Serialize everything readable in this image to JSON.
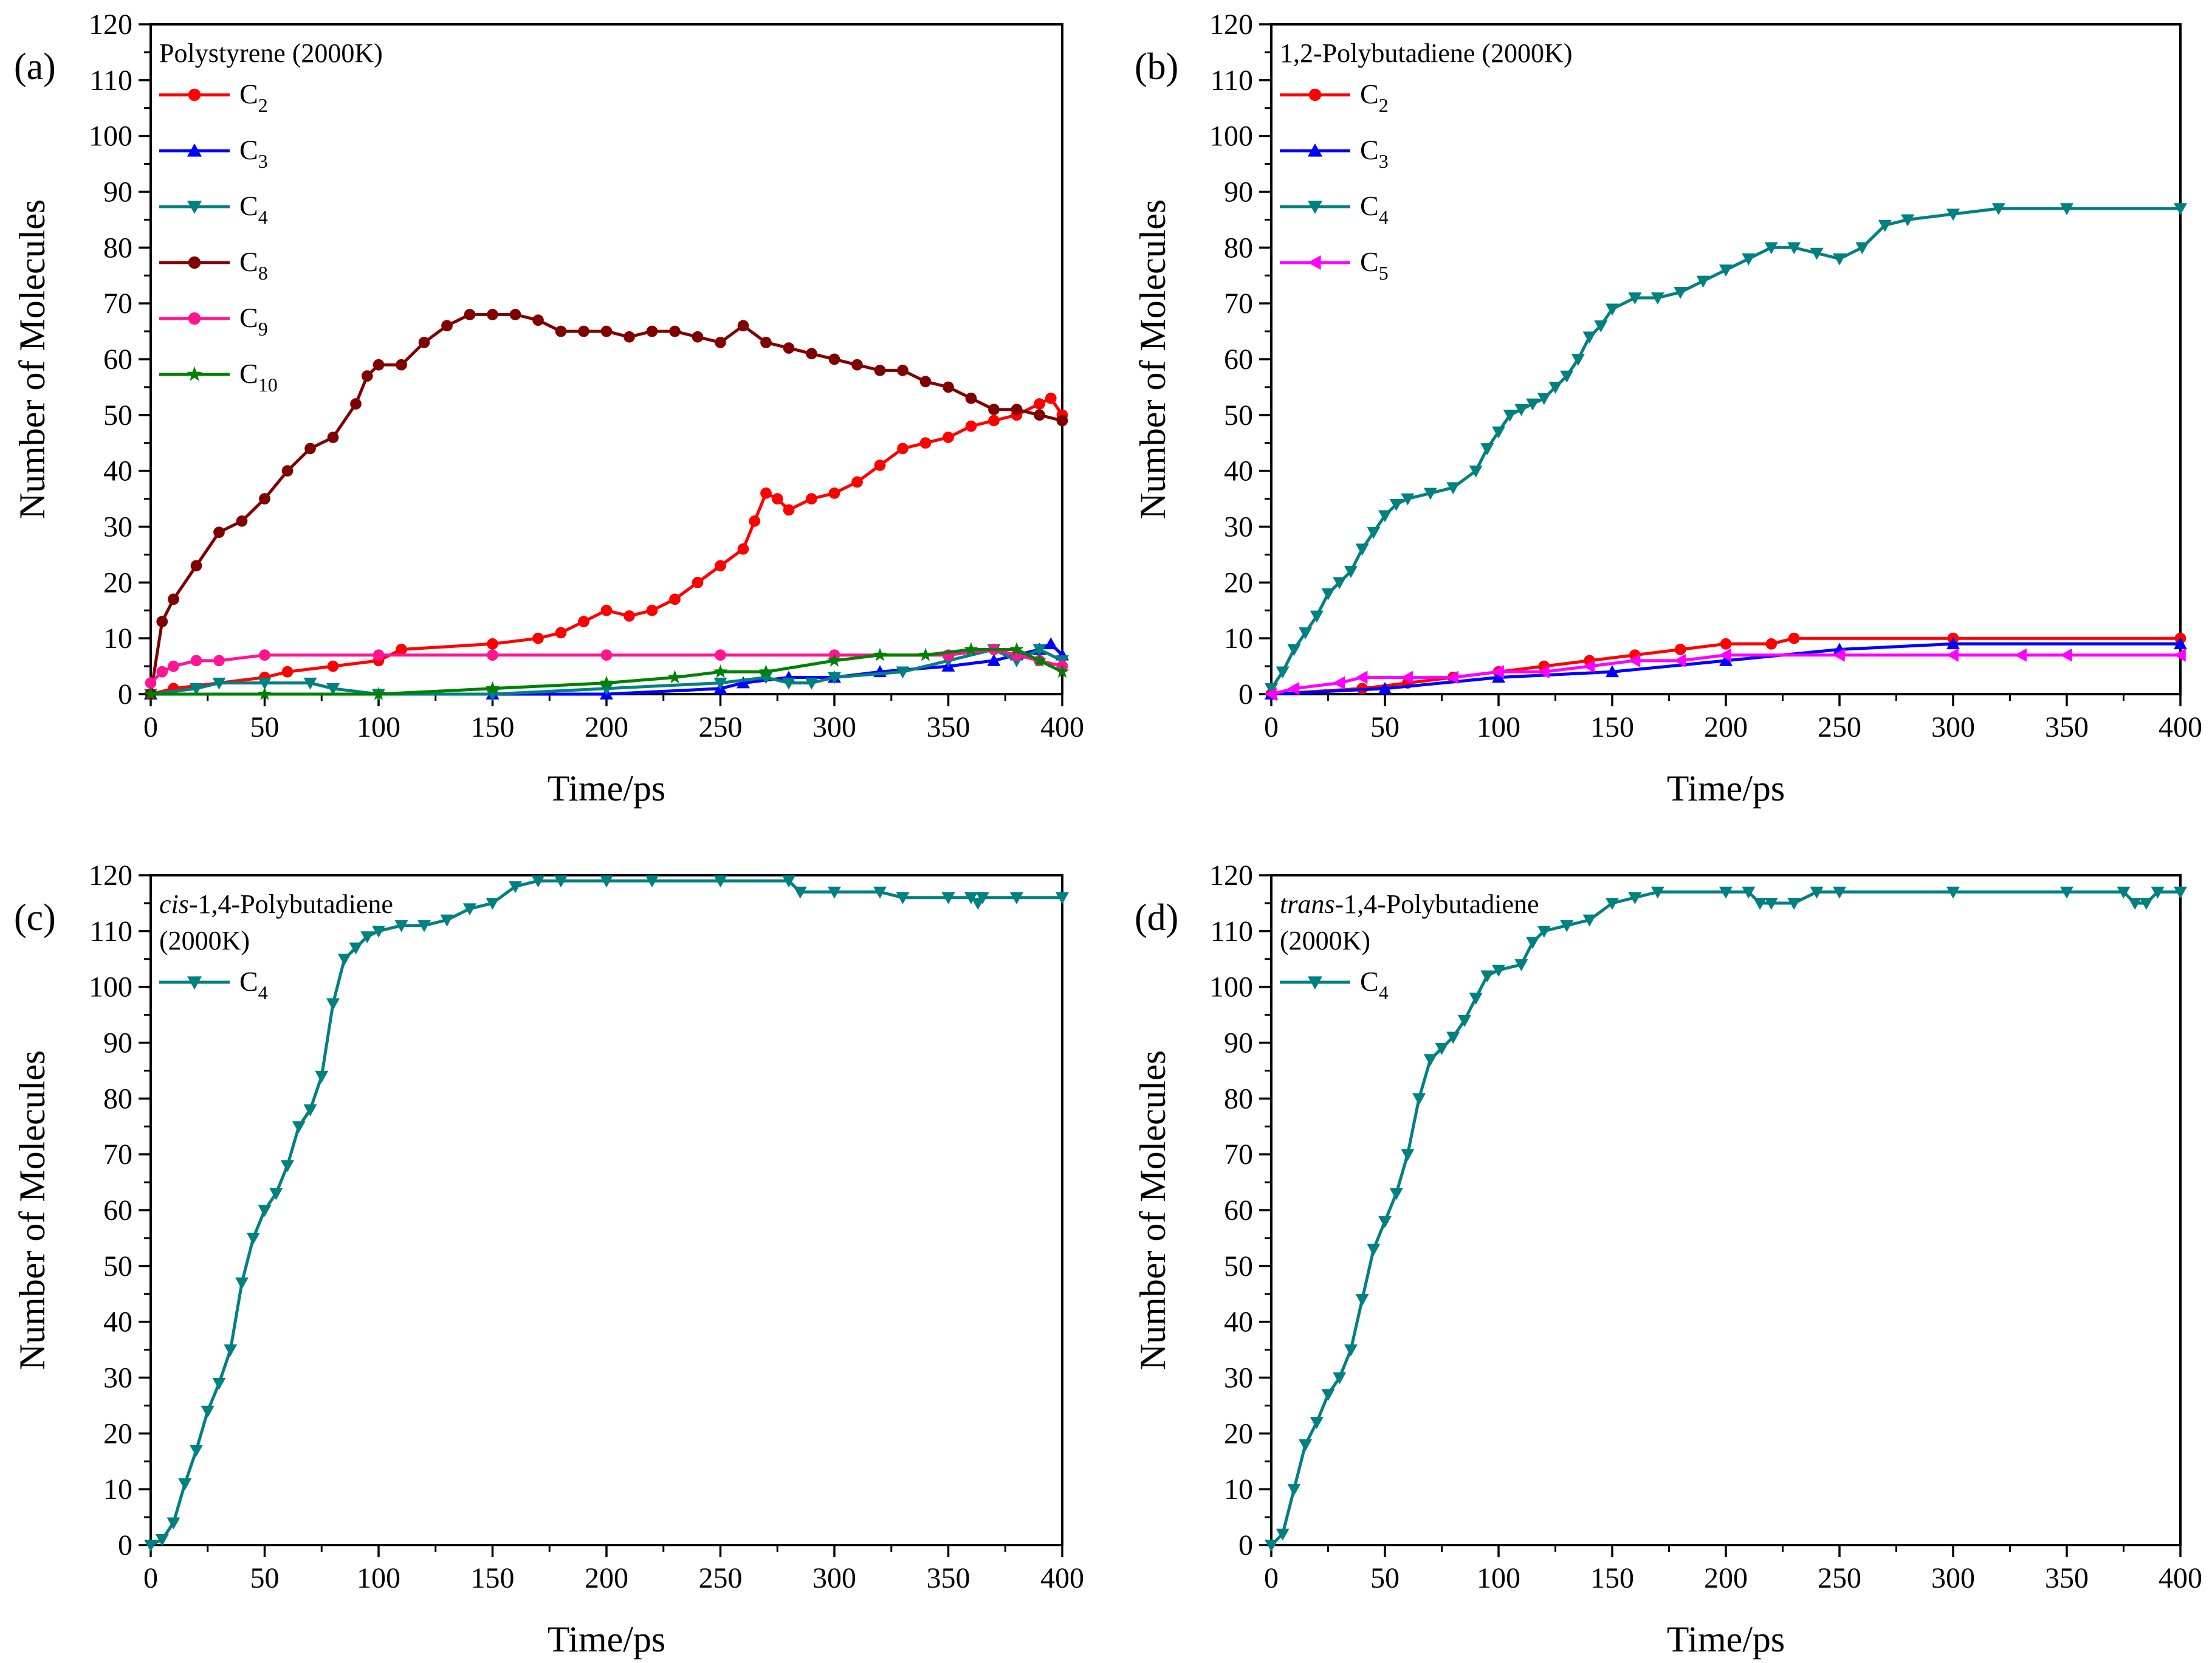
{
  "figure": {
    "x_tick_labels": [
      "0",
      "50",
      "100",
      "150",
      "200",
      "250",
      "300",
      "350",
      "400"
    ],
    "y_tick_labels": [
      "0",
      "10",
      "20",
      "30",
      "40",
      "50",
      "60",
      "70",
      "80",
      "90",
      "100",
      "110",
      "120"
    ]
  },
  "chart_data": [
    {
      "type": "line",
      "panel": "(a)",
      "title": "Polystyrene (2000K)",
      "title_lines": [
        "Polystyrene (2000K)"
      ],
      "xlabel": "Time/ps",
      "ylabel": "Number of Molecules",
      "xlim": [
        0,
        400
      ],
      "ylim": [
        0,
        120
      ],
      "legend_position": "top-left",
      "series": [
        {
          "name": "C2",
          "label_main": "C",
          "label_sub": "2",
          "color": "#FF0000",
          "marker": "circle",
          "x": [
            0,
            10,
            50,
            60,
            80,
            100,
            110,
            150,
            170,
            180,
            190,
            200,
            210,
            220,
            230,
            240,
            250,
            260,
            265,
            270,
            275,
            280,
            290,
            300,
            310,
            320,
            330,
            340,
            350,
            360,
            370,
            380,
            390,
            395,
            400
          ],
          "y": [
            0,
            1,
            3,
            4,
            5,
            6,
            8,
            9,
            10,
            11,
            13,
            15,
            14,
            15,
            17,
            20,
            23,
            26,
            31,
            36,
            35,
            33,
            35,
            36,
            38,
            41,
            44,
            45,
            46,
            48,
            49,
            50,
            52,
            53,
            50
          ]
        },
        {
          "name": "C3",
          "label_main": "C",
          "label_sub": "3",
          "color": "#0000FF",
          "marker": "triangle-up",
          "x": [
            0,
            150,
            200,
            250,
            260,
            280,
            300,
            320,
            350,
            370,
            380,
            390,
            395,
            400
          ],
          "y": [
            0,
            0,
            0,
            1,
            2,
            3,
            3,
            4,
            5,
            6,
            7,
            8,
            9,
            7
          ]
        },
        {
          "name": "C4",
          "label_main": "C",
          "label_sub": "4",
          "color": "#008080",
          "marker": "triangle-down",
          "x": [
            0,
            20,
            30,
            50,
            70,
            80,
            100,
            150,
            200,
            250,
            270,
            280,
            290,
            300,
            330,
            350,
            370,
            380,
            390,
            400
          ],
          "y": [
            0,
            1,
            2,
            2,
            2,
            1,
            0,
            0,
            1,
            2,
            3,
            2,
            2,
            3,
            4,
            6,
            8,
            6,
            8,
            6
          ]
        },
        {
          "name": "C8",
          "label_main": "C",
          "label_sub": "8",
          "color": "#800000",
          "marker": "circle",
          "x": [
            0,
            5,
            10,
            20,
            30,
            40,
            50,
            60,
            70,
            80,
            90,
            95,
            100,
            110,
            120,
            130,
            140,
            150,
            160,
            170,
            180,
            190,
            200,
            210,
            220,
            230,
            240,
            250,
            260,
            270,
            280,
            290,
            300,
            310,
            320,
            330,
            340,
            350,
            360,
            370,
            380,
            390,
            400
          ],
          "y": [
            0,
            13,
            17,
            23,
            29,
            31,
            35,
            40,
            44,
            46,
            52,
            57,
            59,
            59,
            63,
            66,
            68,
            68,
            68,
            67,
            65,
            65,
            65,
            64,
            65,
            65,
            64,
            63,
            66,
            63,
            62,
            61,
            60,
            59,
            58,
            58,
            56,
            55,
            53,
            51,
            51,
            50,
            49
          ]
        },
        {
          "name": "C9",
          "label_main": "C",
          "label_sub": "9",
          "color": "#FF1493",
          "marker": "circle",
          "x": [
            0,
            5,
            10,
            20,
            30,
            50,
            100,
            150,
            200,
            250,
            300,
            350,
            370,
            380,
            390,
            400
          ],
          "y": [
            2,
            4,
            5,
            6,
            6,
            7,
            7,
            7,
            7,
            7,
            7,
            7,
            8,
            7,
            6,
            5
          ]
        },
        {
          "name": "C10",
          "label_main": "C",
          "label_sub": "10",
          "color": "#008000",
          "marker": "star",
          "x": [
            0,
            50,
            100,
            150,
            200,
            230,
            250,
            270,
            300,
            320,
            340,
            360,
            380,
            390,
            400
          ],
          "y": [
            0,
            0,
            0,
            1,
            2,
            3,
            4,
            4,
            6,
            7,
            7,
            8,
            8,
            6,
            4
          ]
        }
      ]
    },
    {
      "type": "line",
      "panel": "(b)",
      "title": "1,2-Polybutadiene (2000K)",
      "title_lines": [
        "1,2-Polybutadiene (2000K)"
      ],
      "xlabel": "Time/ps",
      "ylabel": "Number of Molecules",
      "xlim": [
        0,
        400
      ],
      "ylim": [
        0,
        120
      ],
      "legend_position": "top-left",
      "series": [
        {
          "name": "C2",
          "label_main": "C",
          "label_sub": "2",
          "color": "#FF0000",
          "marker": "circle",
          "x": [
            0,
            40,
            60,
            80,
            100,
            120,
            140,
            160,
            180,
            200,
            220,
            230,
            300,
            400
          ],
          "y": [
            0,
            1,
            2,
            3,
            4,
            5,
            6,
            7,
            8,
            9,
            9,
            10,
            10,
            10
          ]
        },
        {
          "name": "C3",
          "label_main": "C",
          "label_sub": "3",
          "color": "#0000FF",
          "marker": "triangle-up",
          "x": [
            0,
            50,
            100,
            150,
            200,
            250,
            300,
            400
          ],
          "y": [
            0,
            1,
            3,
            4,
            6,
            8,
            9,
            9
          ]
        },
        {
          "name": "C4",
          "label_main": "C",
          "label_sub": "4",
          "color": "#008080",
          "marker": "triangle-down",
          "x": [
            0,
            5,
            10,
            15,
            20,
            25,
            30,
            35,
            40,
            45,
            50,
            55,
            60,
            70,
            80,
            90,
            95,
            100,
            105,
            110,
            115,
            120,
            125,
            130,
            135,
            140,
            145,
            150,
            160,
            170,
            180,
            190,
            200,
            210,
            220,
            230,
            240,
            250,
            260,
            270,
            280,
            300,
            320,
            350,
            400
          ],
          "y": [
            1,
            4,
            8,
            11,
            14,
            18,
            20,
            22,
            26,
            29,
            32,
            34,
            35,
            36,
            37,
            40,
            44,
            47,
            50,
            51,
            52,
            53,
            55,
            57,
            60,
            64,
            66,
            69,
            71,
            71,
            72,
            74,
            76,
            78,
            80,
            80,
            79,
            78,
            80,
            84,
            85,
            86,
            87,
            87,
            87
          ]
        },
        {
          "name": "C5",
          "label_main": "C",
          "label_sub": "5",
          "color": "#FF00FF",
          "marker": "triangle-left",
          "x": [
            0,
            10,
            30,
            40,
            60,
            80,
            100,
            120,
            140,
            160,
            180,
            200,
            250,
            300,
            330,
            350,
            400
          ],
          "y": [
            0,
            1,
            2,
            3,
            3,
            3,
            4,
            4,
            5,
            6,
            6,
            7,
            7,
            7,
            7,
            7,
            7
          ]
        }
      ]
    },
    {
      "type": "line",
      "panel": "(c)",
      "title": "cis-1,4-Polybutadiene (2000K)",
      "title_lines": [
        "cis-1,4-Polybutadiene",
        "(2000K)"
      ],
      "xlabel": "Time/ps",
      "ylabel": "Number of Molecules",
      "xlim": [
        0,
        400
      ],
      "ylim": [
        0,
        120
      ],
      "legend_position": "top-left",
      "series": [
        {
          "name": "C4",
          "label_main": "C",
          "label_sub": "4",
          "color": "#008080",
          "marker": "triangle-down",
          "x": [
            0,
            5,
            10,
            15,
            20,
            25,
            30,
            35,
            40,
            45,
            50,
            55,
            60,
            65,
            70,
            75,
            80,
            85,
            90,
            95,
            100,
            110,
            120,
            130,
            140,
            150,
            160,
            170,
            180,
            200,
            220,
            250,
            280,
            285,
            300,
            320,
            330,
            350,
            360,
            363,
            365,
            380,
            400
          ],
          "y": [
            0,
            1,
            4,
            11,
            17,
            24,
            29,
            35,
            47,
            55,
            60,
            63,
            68,
            75,
            78,
            84,
            97,
            105,
            107,
            109,
            110,
            111,
            111,
            112,
            114,
            115,
            118,
            119,
            119,
            119,
            119,
            119,
            119,
            117,
            117,
            117,
            116,
            116,
            116,
            115,
            116,
            116,
            116
          ]
        }
      ]
    },
    {
      "type": "line",
      "panel": "(d)",
      "title": "trans-1,4-Polybutadiene (2000K)",
      "title_lines": [
        "trans-1,4-Polybutadiene",
        "(2000K)"
      ],
      "xlabel": "Time/ps",
      "ylabel": "Number of Molecules",
      "xlim": [
        0,
        400
      ],
      "ylim": [
        0,
        120
      ],
      "legend_position": "top-left",
      "series": [
        {
          "name": "C4",
          "label_main": "C",
          "label_sub": "4",
          "color": "#008080",
          "marker": "triangle-down",
          "x": [
            0,
            5,
            10,
            15,
            20,
            25,
            30,
            35,
            40,
            45,
            50,
            55,
            60,
            65,
            70,
            75,
            80,
            85,
            90,
            95,
            100,
            110,
            115,
            120,
            130,
            140,
            150,
            160,
            170,
            200,
            210,
            215,
            220,
            230,
            240,
            250,
            300,
            350,
            375,
            380,
            385,
            390,
            400
          ],
          "y": [
            0,
            2,
            10,
            18,
            22,
            27,
            30,
            35,
            44,
            53,
            58,
            63,
            70,
            80,
            87,
            89,
            91,
            94,
            98,
            102,
            103,
            104,
            108,
            110,
            111,
            112,
            115,
            116,
            117,
            117,
            117,
            115,
            115,
            115,
            117,
            117,
            117,
            117,
            117,
            115,
            115,
            117,
            117
          ]
        }
      ]
    }
  ]
}
